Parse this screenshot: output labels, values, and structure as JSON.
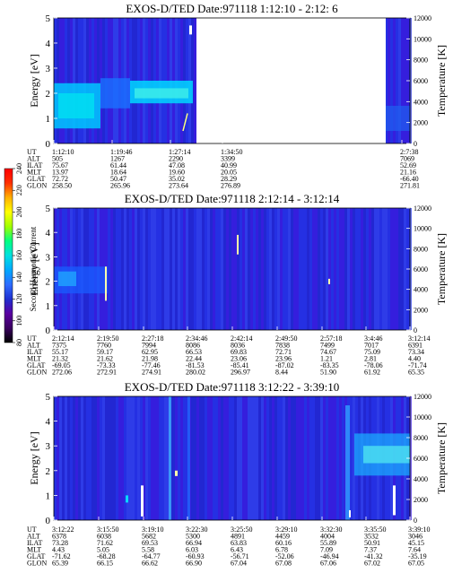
{
  "colorbar": {
    "label": "Second Harmonic Current",
    "ticks": [
      "240",
      "220",
      "200",
      "180",
      "160",
      "140",
      "120",
      "100",
      "80"
    ],
    "min": 80,
    "max": 240,
    "colors": [
      "#000000",
      "#3a0060",
      "#5a00a0",
      "#2030d0",
      "#2e6cff",
      "#00a8ff",
      "#00e0e0",
      "#00ff80",
      "#a0ff00",
      "#ffff00",
      "#ffb000",
      "#ff3000",
      "#ff0000"
    ]
  },
  "chart_data": [
    {
      "type": "heatmap",
      "title": "EXOS-D/TED   Date:971118   1:12:10 - 2:12: 6",
      "ylabel": "Energy [eV]",
      "ylabel_right": "Temperature [K]",
      "ylim": [
        0,
        5
      ],
      "ylim_right": [
        0,
        12000
      ],
      "yticks": [
        "0",
        "1",
        "2",
        "3",
        "4",
        "5"
      ],
      "yticks_right": [
        "0",
        "2000",
        "4000",
        "6000",
        "8000",
        "10000",
        "12000"
      ],
      "data_gap": {
        "from": "1:34:50",
        "to": "2:7:38"
      },
      "columns": [
        {
          "UT": "1:12:10",
          "ALT": "505",
          "ILAT": "75.67",
          "MLT": "13.97",
          "GLAT": "72.72",
          "GLON": "258.50"
        },
        {
          "UT": "1:19:46",
          "ALT": "1267",
          "ILAT": "61.44",
          "MLT": "18.64",
          "GLAT": "50.47",
          "GLON": "265.96"
        },
        {
          "UT": "1:27:14",
          "ALT": "2290",
          "ILAT": "47.08",
          "MLT": "19.60",
          "GLAT": "35.02",
          "GLON": "273.64"
        },
        {
          "UT": "1:34:50",
          "ALT": "3399",
          "ILAT": "40.99",
          "MLT": "20.05",
          "GLAT": "28.29",
          "GLON": "276.89"
        },
        {
          "UT": "2:7:38",
          "ALT": "7069",
          "ILAT": "52.69",
          "MLT": "21.16",
          "GLAT": "-66.40",
          "GLON": "271.81"
        }
      ]
    },
    {
      "type": "heatmap",
      "title": "EXOS-D/TED   Date:971118   2:12:14 - 3:12:14",
      "ylabel": "Energy [eV]",
      "ylabel_right": "Temperature [K]",
      "ylim": [
        0,
        5
      ],
      "ylim_right": [
        0,
        12000
      ],
      "yticks": [
        "0",
        "1",
        "2",
        "3",
        "4",
        "5"
      ],
      "yticks_right": [
        "0",
        "2000",
        "4000",
        "6000",
        "8000",
        "10000",
        "12000"
      ],
      "columns": [
        {
          "UT": "2:12:14",
          "ALT": "7375",
          "ILAT": "55.17",
          "MLT": "21.32",
          "GLAT": "-69.05",
          "GLON": "272.06"
        },
        {
          "UT": "2:19:50",
          "ALT": "7760",
          "ILAT": "59.17",
          "MLT": "21.62",
          "GLAT": "-73.33",
          "GLON": "272.91"
        },
        {
          "UT": "2:27:18",
          "ALT": "7994",
          "ILAT": "62.95",
          "MLT": "21.98",
          "GLAT": "-77.46",
          "GLON": "274.91"
        },
        {
          "UT": "2:34:46",
          "ALT": "8086",
          "ILAT": "66.53",
          "MLT": "22.44",
          "GLAT": "-81.53",
          "GLON": "280.02"
        },
        {
          "UT": "2:42:14",
          "ALT": "8036",
          "ILAT": "69.83",
          "MLT": "23.06",
          "GLAT": "-85.41",
          "GLON": "296.97"
        },
        {
          "UT": "2:49:50",
          "ALT": "7838",
          "ILAT": "72.71",
          "MLT": "23.96",
          "GLAT": "-87.02",
          "GLON": "8.44"
        },
        {
          "UT": "2:57:18",
          "ALT": "7499",
          "ILAT": "74.67",
          "MLT": "1.21",
          "GLAT": "-83.35",
          "GLON": "51.90"
        },
        {
          "UT": "3:4:46",
          "ALT": "7017",
          "ILAT": "75.09",
          "MLT": "2.81",
          "GLAT": "-78.06",
          "GLON": "61.92"
        },
        {
          "UT": "3:12:14",
          "ALT": "6391",
          "ILAT": "73.34",
          "MLT": "4.40",
          "GLAT": "-71.74",
          "GLON": "65.35"
        }
      ]
    },
    {
      "type": "heatmap",
      "title": "EXOS-D/TED   Date:971118   3:12:22 - 3:39:10",
      "ylabel": "Energy [eV]",
      "ylabel_right": "Temperature [K]",
      "ylim": [
        0,
        5
      ],
      "ylim_right": [
        0,
        12000
      ],
      "yticks": [
        "0",
        "1",
        "2",
        "3",
        "4",
        "5"
      ],
      "yticks_right": [
        "0",
        "2000",
        "4000",
        "6000",
        "8000",
        "10000",
        "12000"
      ],
      "columns": [
        {
          "UT": "3:12:22",
          "ALT": "6378",
          "ILAT": "73.28",
          "MLT": "4.43",
          "GLAT": "-71.62",
          "GLON": "65.39"
        },
        {
          "UT": "3:15:50",
          "ALT": "6038",
          "ILAT": "71.62",
          "MLT": "5.05",
          "GLAT": "-68.28",
          "GLON": "66.15"
        },
        {
          "UT": "3:19:10",
          "ALT": "5682",
          "ILAT": "69.53",
          "MLT": "5.58",
          "GLAT": "-64.77",
          "GLON": "66.62"
        },
        {
          "UT": "3:22:30",
          "ALT": "5300",
          "ILAT": "66.94",
          "MLT": "6.03",
          "GLAT": "-60.93",
          "GLON": "66.90"
        },
        {
          "UT": "3:25:50",
          "ALT": "4891",
          "ILAT": "63.83",
          "MLT": "6.43",
          "GLAT": "-56.71",
          "GLON": "67.04"
        },
        {
          "UT": "3:29:10",
          "ALT": "4459",
          "ILAT": "60.16",
          "MLT": "6.78",
          "GLAT": "-52.06",
          "GLON": "67.08"
        },
        {
          "UT": "3:32:30",
          "ALT": "4004",
          "ILAT": "55.89",
          "MLT": "7.09",
          "GLAT": "-46.94",
          "GLON": "67.06"
        },
        {
          "UT": "3:35:50",
          "ALT": "3532",
          "ILAT": "50.91",
          "MLT": "7.37",
          "GLAT": "-41.32",
          "GLON": "67.02"
        },
        {
          "UT": "3:39:10",
          "ALT": "3046",
          "ILAT": "45.15",
          "MLT": "7.64",
          "GLAT": "-35.19",
          "GLON": "67.05"
        }
      ]
    }
  ],
  "row_labels": [
    "UT",
    "ALT",
    "ILAT",
    "MLT",
    "GLAT",
    "GLON"
  ]
}
